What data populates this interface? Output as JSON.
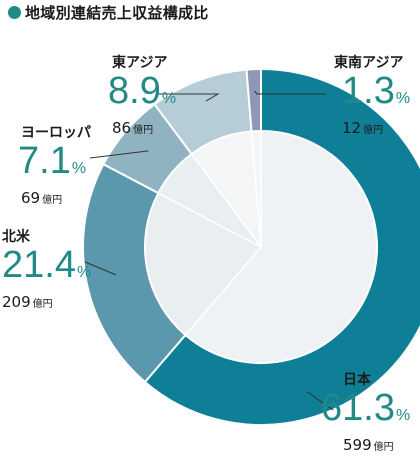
{
  "title": "地域別連結売上収益構成比",
  "colors": {
    "accent": "#1f8a86",
    "segments": [
      "#0f7f97",
      "#5b97ad",
      "#8fb3c1",
      "#b6cdd7",
      "#8e98b6"
    ],
    "inner": [
      "#eef2f4",
      "#e9eef1",
      "#e9eef1",
      "#f3f5f7",
      "#f3f5f7"
    ]
  },
  "chart_data": {
    "type": "pie",
    "title": "地域別連結売上収益構成比",
    "categories": [
      "日本",
      "北米",
      "ヨーロッパ",
      "東アジア",
      "東南アジア"
    ],
    "values": [
      61.3,
      21.4,
      7.1,
      8.9,
      1.3
    ],
    "amounts": [
      599,
      209,
      69,
      86,
      12
    ],
    "percent_unit": "%",
    "amount_unit": "億円"
  },
  "labels": [
    {
      "name": "日本",
      "pct": "61.3",
      "amount": "599"
    },
    {
      "name": "北米",
      "pct": "21.4",
      "amount": "209"
    },
    {
      "name": "ヨーロッパ",
      "pct": "7.1",
      "amount": "69"
    },
    {
      "name": "東アジア",
      "pct": "8.9",
      "amount": "86"
    },
    {
      "name": "東南アジア",
      "pct": "1.3",
      "amount": "12"
    }
  ]
}
